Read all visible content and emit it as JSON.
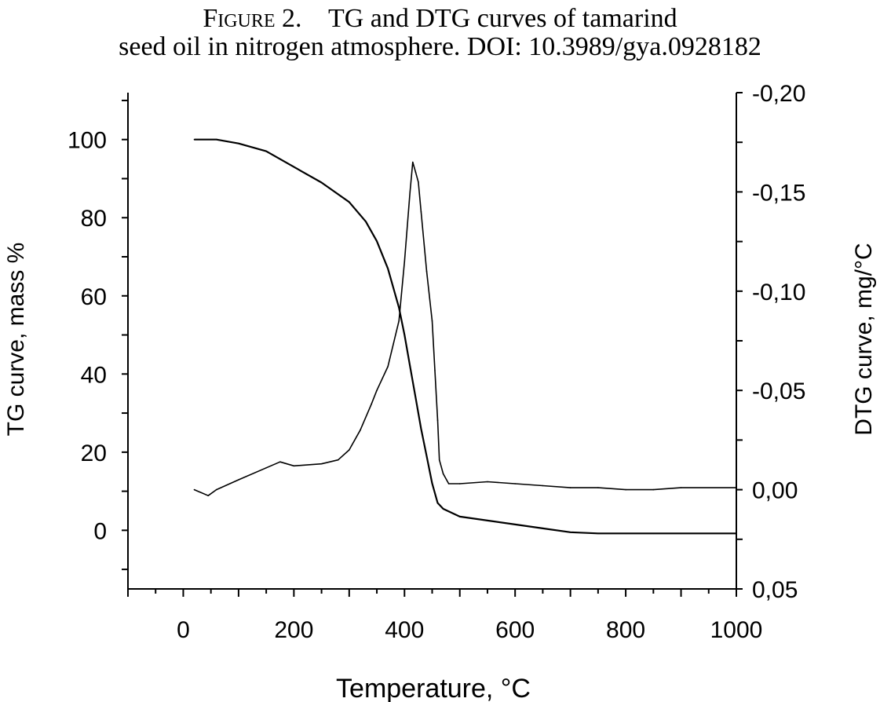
{
  "caption": {
    "label": "Figure 2.",
    "text_line1": "TG and DTG curves of tamarind",
    "text_line2": "seed oil in nitrogen atmosphere. DOI: 10.3989/gya.0928182"
  },
  "chart_data": {
    "type": "line",
    "xlabel": "Temperature, °C",
    "ylabel_left": "TG curve, mass %",
    "ylabel_right": "DTG curve, mg/°C",
    "xlim": [
      -100,
      1000
    ],
    "ylim_left": [
      -15,
      112
    ],
    "ylim_right": [
      0.05,
      -0.2
    ],
    "x_ticks": [
      0,
      200,
      400,
      600,
      800,
      1000
    ],
    "x_tick_labels": [
      "0",
      "200",
      "400",
      "600",
      "800",
      "1000"
    ],
    "y_left_ticks": [
      0,
      20,
      40,
      60,
      80,
      100
    ],
    "y_left_tick_labels": [
      "0",
      "20",
      "40",
      "60",
      "80",
      "100"
    ],
    "y_right_ticks": [
      0.05,
      0.0,
      -0.05,
      -0.1,
      -0.15,
      -0.2
    ],
    "y_right_tick_labels": [
      "0,05",
      "0,00",
      "-0,05",
      "-0,10",
      "-0,15",
      "-0,20"
    ],
    "grid": false,
    "series": [
      {
        "axis": "left",
        "x": [
          20,
          60,
          100,
          150,
          200,
          250,
          300,
          330,
          350,
          370,
          390,
          400,
          410,
          420,
          430,
          440,
          450,
          460,
          470,
          500,
          550,
          600,
          650,
          700,
          750,
          800,
          850,
          900,
          1000
        ],
        "values": [
          100,
          100,
          99,
          97,
          93,
          89,
          84,
          79,
          74,
          67,
          57,
          50,
          42,
          34,
          26,
          19,
          12,
          7,
          5.5,
          3.5,
          2.5,
          1.5,
          0.5,
          -0.5,
          -0.8,
          -0.8,
          -0.8,
          -0.8,
          -0.8
        ]
      },
      {
        "axis": "right",
        "x": [
          20,
          45,
          60,
          100,
          150,
          175,
          200,
          250,
          280,
          300,
          320,
          340,
          350,
          370,
          390,
          400,
          410,
          415,
          420,
          425,
          430,
          440,
          450,
          455,
          460,
          463,
          470,
          480,
          500,
          550,
          600,
          650,
          700,
          750,
          800,
          850,
          900,
          1000
        ],
        "values": [
          0.0,
          0.003,
          0.0,
          -0.005,
          -0.011,
          -0.014,
          -0.012,
          -0.013,
          -0.015,
          -0.02,
          -0.03,
          -0.043,
          -0.05,
          -0.062,
          -0.085,
          -0.115,
          -0.15,
          -0.165,
          -0.16,
          -0.155,
          -0.14,
          -0.11,
          -0.085,
          -0.06,
          -0.035,
          -0.015,
          -0.008,
          -0.003,
          -0.003,
          -0.004,
          -0.003,
          -0.002,
          -0.001,
          -0.001,
          0.0,
          0.0,
          -0.001,
          -0.001
        ]
      }
    ]
  }
}
